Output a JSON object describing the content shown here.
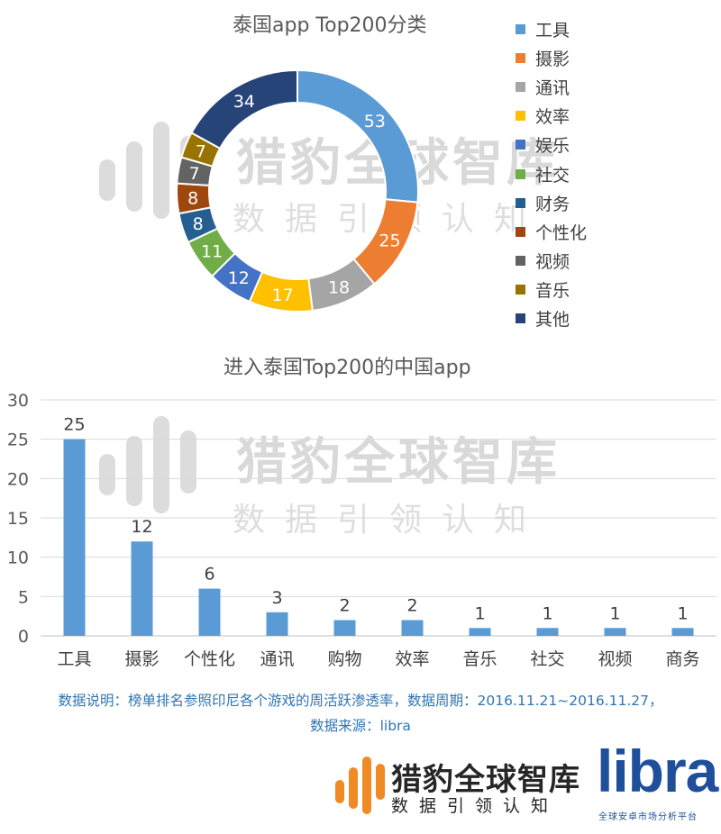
{
  "watermark": {
    "title": "猎豹全球智库",
    "subtitle": "数据引领认知"
  },
  "chart_data": [
    {
      "type": "pie",
      "subtype": "donut",
      "title": "泰国app Top200分类",
      "legend_position": "right",
      "categories": [
        "工具",
        "摄影",
        "通讯",
        "效率",
        "娱乐",
        "社交",
        "财务",
        "个性化",
        "视频",
        "音乐",
        "其他"
      ],
      "values": [
        53,
        25,
        18,
        17,
        12,
        11,
        8,
        8,
        7,
        7,
        34
      ],
      "colors": [
        "#5b9bd5",
        "#ed7d31",
        "#a5a5a5",
        "#ffc000",
        "#4472c4",
        "#70ad47",
        "#255e91",
        "#9e480e",
        "#636363",
        "#997300",
        "#264478"
      ]
    },
    {
      "type": "bar",
      "title": "进入泰国Top200的中国app",
      "categories": [
        "工具",
        "摄影",
        "个性化",
        "通讯",
        "购物",
        "效率",
        "音乐",
        "社交",
        "视频",
        "商务"
      ],
      "values": [
        25,
        12,
        6,
        3,
        2,
        2,
        1,
        1,
        1,
        1
      ],
      "ylim": [
        0,
        30
      ],
      "yticks": [
        0,
        5,
        10,
        15,
        20,
        25,
        30
      ],
      "grid": true,
      "data_labels": true,
      "color": "#5b9bd5"
    }
  ],
  "note": {
    "line1": "数据说明：榜单排名参照印尼各个游戏的周活跃渗透率，数据周期：2016.11.21~2016.11.27，",
    "line2": "数据来源：libra"
  },
  "brand": {
    "title": "猎豹全球智库",
    "subtitle": "数据引领认知",
    "libra": "libra",
    "libra_sub": "全球安卓市场分析平台",
    "bar_color": "#f08a24"
  }
}
